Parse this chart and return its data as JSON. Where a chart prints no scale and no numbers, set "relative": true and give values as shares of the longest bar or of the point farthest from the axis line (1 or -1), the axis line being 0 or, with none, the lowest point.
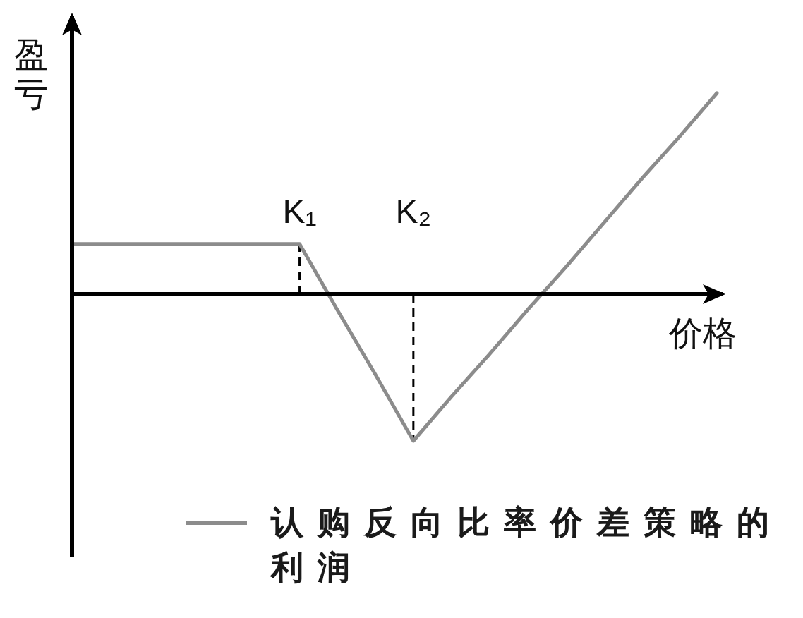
{
  "chart_data": {
    "type": "line",
    "xlabel": "价格",
    "ylabel": "盈亏",
    "relative": true,
    "categories": [
      null,
      null,
      null,
      null,
      null,
      null,
      "K₁",
      null,
      null,
      "K₂",
      null,
      null,
      null,
      null,
      null,
      null,
      null,
      null
    ],
    "series": [
      {
        "name": "认购反向比率价差策略的利润",
        "color": "#8c8c8c",
        "values": [
          0.25,
          0.25,
          0.25,
          0.25,
          0.25,
          0.25,
          0.25,
          -0.08,
          -0.4,
          -0.73,
          -0.51,
          -0.3,
          -0.08,
          0.13,
          0.35,
          0.57,
          0.78,
          1
        ]
      }
    ],
    "ref_lines": [
      {
        "axis": "x",
        "value": "K₁",
        "color": "#000000",
        "line_style": "dashed"
      },
      {
        "axis": "x",
        "value": "K₂",
        "color": "#000000",
        "line_style": "dashed"
      }
    ],
    "legend": "bottom"
  }
}
